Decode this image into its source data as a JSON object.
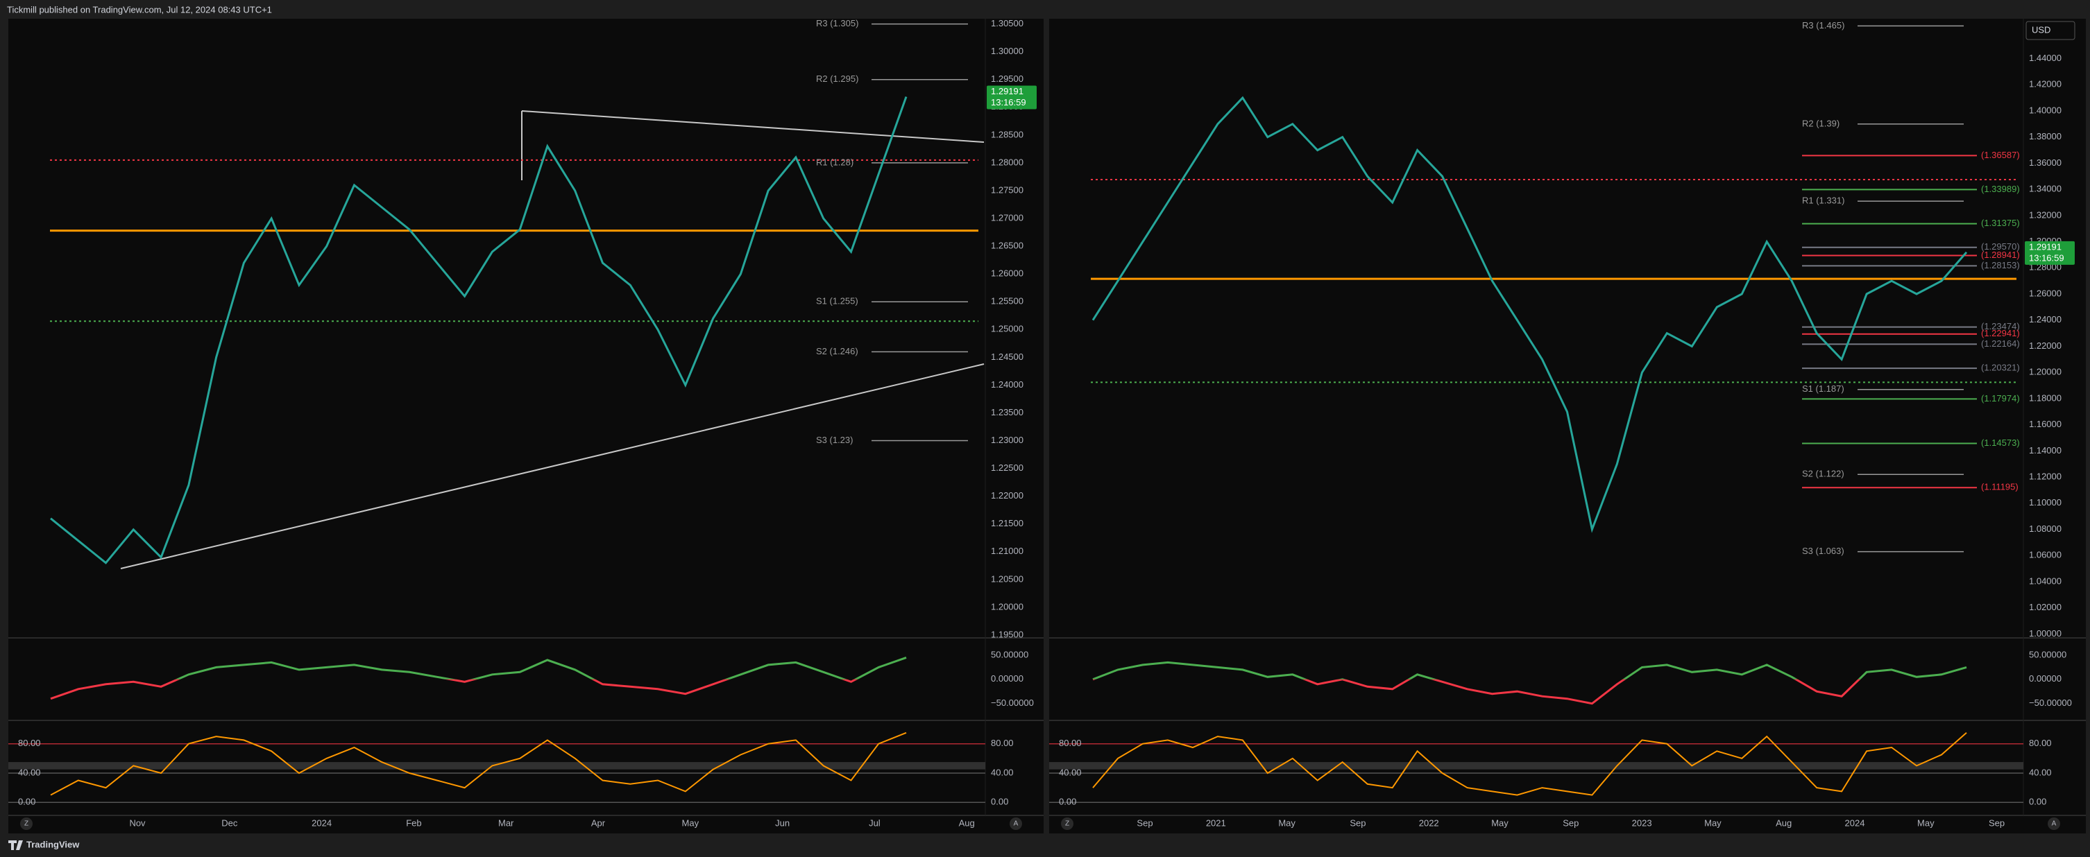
{
  "header": {
    "title": "Tickmill published on TradingView.com, Jul 12, 2024 08:43 UTC+1"
  },
  "footer": {
    "brand": "TradingView"
  },
  "chart_data": [
    {
      "type": "line",
      "grid": false,
      "ylim": [
        1.19475,
        1.30595
      ],
      "yticks": [
        {
          "value": 1.305,
          "label": "1.30500"
        },
        {
          "value": 1.3,
          "label": "1.30000"
        },
        {
          "value": 1.295,
          "label": "1.29500"
        },
        {
          "value": 1.29,
          "label": "1.29000"
        },
        {
          "value": 1.285,
          "label": "1.28500"
        },
        {
          "value": 1.28,
          "label": "1.28000"
        },
        {
          "value": 1.275,
          "label": "1.27500"
        },
        {
          "value": 1.27,
          "label": "1.27000"
        },
        {
          "value": 1.265,
          "label": "1.26500"
        },
        {
          "value": 1.26,
          "label": "1.26000"
        },
        {
          "value": 1.255,
          "label": "1.25500"
        },
        {
          "value": 1.25,
          "label": "1.25000"
        },
        {
          "value": 1.245,
          "label": "1.24500"
        },
        {
          "value": 1.24,
          "label": "1.24000"
        },
        {
          "value": 1.235,
          "label": "1.23500"
        },
        {
          "value": 1.23,
          "label": "1.23000"
        },
        {
          "value": 1.225,
          "label": "1.22500"
        },
        {
          "value": 1.22,
          "label": "1.22000"
        },
        {
          "value": 1.215,
          "label": "1.21500"
        },
        {
          "value": 1.21,
          "label": "1.21000"
        },
        {
          "value": 1.205,
          "label": "1.20500"
        },
        {
          "value": 1.2,
          "label": "1.20000"
        },
        {
          "value": 1.195,
          "label": "1.19500"
        }
      ],
      "series": [
        {
          "color": "#26a69a",
          "values": [
            1.216,
            1.212,
            1.208,
            1.214,
            1.209,
            1.222,
            1.245,
            1.262,
            1.27,
            1.258,
            1.265,
            1.276,
            1.272,
            1.268,
            1.262,
            1.256,
            1.264,
            1.268,
            1.283,
            1.275,
            1.262,
            1.258,
            1.25,
            1.24,
            1.252,
            1.26,
            1.275,
            1.281,
            1.27,
            1.264,
            1.278,
            1.29191
          ]
        }
      ],
      "last_price": 1.29191,
      "timer": "13:16:59",
      "tag_color": "#1e9e3a",
      "poc": 1.2678,
      "vah": 1.2805,
      "val": 1.2515,
      "pivots": [
        {
          "value": 1.305,
          "label": "R3 (1.305)"
        },
        {
          "value": 1.295,
          "label": "R2 (1.295)"
        },
        {
          "value": 1.28,
          "label": "R1 (1.28)"
        },
        {
          "value": 1.255,
          "label": "S1 (1.255)"
        },
        {
          "value": 1.246,
          "label": "S2 (1.246)"
        },
        {
          "value": 1.23,
          "label": "S3 (1.23)"
        }
      ],
      "levels": [],
      "time_labels": [
        "Nov",
        "Dec",
        "2024",
        "Feb",
        "Mar",
        "Apr",
        "May",
        "Jun",
        "Jul",
        "Aug"
      ],
      "osc_ylim": [
        -82,
        80
      ],
      "osc_yticks": [
        {
          "value": 50,
          "label": "50.00000"
        },
        {
          "value": 0,
          "label": "0.00000"
        },
        {
          "value": -50,
          "label": "−50.00000"
        }
      ],
      "osc_values": [
        -40,
        -20,
        -10,
        -5,
        -15,
        10,
        25,
        30,
        35,
        20,
        25,
        30,
        20,
        15,
        5,
        -5,
        10,
        15,
        40,
        20,
        -10,
        -15,
        -20,
        -30,
        -10,
        10,
        30,
        35,
        15,
        -5,
        25,
        45
      ],
      "stoch_ylim": [
        -14,
        110
      ],
      "stoch_yticks": [
        {
          "value": 80,
          "label": "80.00"
        },
        {
          "value": 40,
          "label": "40.00"
        },
        {
          "value": 0,
          "label": "0.00"
        }
      ],
      "stoch_values": [
        10,
        30,
        20,
        50,
        40,
        80,
        90,
        85,
        70,
        40,
        60,
        75,
        55,
        40,
        30,
        20,
        50,
        60,
        85,
        60,
        30,
        25,
        30,
        15,
        45,
        65,
        80,
        85,
        50,
        30,
        80,
        95
      ],
      "stoch_color": "#ff9800",
      "scale_buttons": [
        "Z",
        "A"
      ]
    },
    {
      "type": "line",
      "grid": false,
      "ylim": [
        0.9981,
        1.4705
      ],
      "yticks": [
        {
          "value": 1.44,
          "label": "1.44000"
        },
        {
          "value": 1.42,
          "label": "1.42000"
        },
        {
          "value": 1.4,
          "label": "1.40000"
        },
        {
          "value": 1.38,
          "label": "1.38000"
        },
        {
          "value": 1.36,
          "label": "1.36000"
        },
        {
          "value": 1.34,
          "label": "1.34000"
        },
        {
          "value": 1.32,
          "label": "1.32000"
        },
        {
          "value": 1.3,
          "label": "1.30000"
        },
        {
          "value": 1.28,
          "label": "1.28000"
        },
        {
          "value": 1.26,
          "label": "1.26000"
        },
        {
          "value": 1.24,
          "label": "1.24000"
        },
        {
          "value": 1.22,
          "label": "1.22000"
        },
        {
          "value": 1.2,
          "label": "1.20000"
        },
        {
          "value": 1.18,
          "label": "1.18000"
        },
        {
          "value": 1.16,
          "label": "1.16000"
        },
        {
          "value": 1.14,
          "label": "1.14000"
        },
        {
          "value": 1.12,
          "label": "1.12000"
        },
        {
          "value": 1.1,
          "label": "1.10000"
        },
        {
          "value": 1.08,
          "label": "1.08000"
        },
        {
          "value": 1.06,
          "label": "1.06000"
        },
        {
          "value": 1.04,
          "label": "1.04000"
        },
        {
          "value": 1.02,
          "label": "1.02000"
        },
        {
          "value": 1,
          "label": "1.00000"
        }
      ],
      "series": [
        {
          "color": "#26a69a",
          "values": [
            1.24,
            1.27,
            1.3,
            1.33,
            1.36,
            1.39,
            1.41,
            1.38,
            1.39,
            1.37,
            1.38,
            1.35,
            1.33,
            1.37,
            1.35,
            1.31,
            1.27,
            1.24,
            1.21,
            1.17,
            1.08,
            1.13,
            1.2,
            1.23,
            1.22,
            1.25,
            1.26,
            1.3,
            1.27,
            1.23,
            1.21,
            1.26,
            1.27,
            1.26,
            1.27,
            1.29191
          ]
        }
      ],
      "last_price": 1.29191,
      "timer": "13:16:59",
      "tag_color": "#1e9e3a",
      "currency": "USD",
      "poc": 1.2716,
      "vah": 1.3475,
      "val": 1.1925,
      "pivots": [
        {
          "value": 1.465,
          "label": "R3 (1.465)"
        },
        {
          "value": 1.39,
          "label": "R2 (1.39)"
        },
        {
          "value": 1.331,
          "label": "R1 (1.331)"
        },
        {
          "value": 1.187,
          "label": "S1 (1.187)"
        },
        {
          "value": 1.122,
          "label": "S2 (1.122)"
        },
        {
          "value": 1.063,
          "label": "S3 (1.063)"
        }
      ],
      "levels": [
        {
          "value": 1.36587,
          "label": "(1.36587)",
          "color": "#f23645"
        },
        {
          "value": 1.33989,
          "label": "(1.33989)",
          "color": "#4caf50"
        },
        {
          "value": 1.31375,
          "label": "(1.31375)",
          "color": "#4caf50"
        },
        {
          "value": 1.2957,
          "label": "(1.29570)",
          "color": "#787b86"
        },
        {
          "value": 1.28941,
          "label": "(1.28941)",
          "color": "#f23645"
        },
        {
          "value": 1.28153,
          "label": "(1.28153)",
          "color": "#787b86"
        },
        {
          "value": 1.23474,
          "label": "(1.23474)",
          "color": "#787b86"
        },
        {
          "value": 1.22941,
          "label": "(1.22941)",
          "color": "#f23645"
        },
        {
          "value": 1.22164,
          "label": "(1.22164)",
          "color": "#787b86"
        },
        {
          "value": 1.20321,
          "label": "(1.20321)",
          "color": "#787b86"
        },
        {
          "value": 1.17974,
          "label": "(1.17974)",
          "color": "#4caf50"
        },
        {
          "value": 1.14573,
          "label": "(1.14573)",
          "color": "#4caf50"
        },
        {
          "value": 1.11195,
          "label": "(1.11195)",
          "color": "#f23645"
        }
      ],
      "time_labels": [
        "Sep",
        "2021",
        "May",
        "Sep",
        "2022",
        "May",
        "Sep",
        "2023",
        "May",
        "Aug",
        "2024",
        "May",
        "Sep"
      ],
      "osc_ylim": [
        -82,
        80
      ],
      "osc_yticks": [
        {
          "value": 50,
          "label": "50.00000"
        },
        {
          "value": 0,
          "label": "0.00000"
        },
        {
          "value": -50,
          "label": "−50.00000"
        }
      ],
      "osc_values": [
        0,
        20,
        30,
        35,
        30,
        25,
        20,
        5,
        10,
        -10,
        0,
        -15,
        -20,
        10,
        -5,
        -20,
        -30,
        -25,
        -35,
        -40,
        -50,
        -10,
        25,
        30,
        15,
        20,
        10,
        30,
        5,
        -25,
        -35,
        15,
        20,
        5,
        10,
        25
      ],
      "stoch_ylim": [
        -14,
        110
      ],
      "stoch_yticks": [
        {
          "value": 80,
          "label": "80.00"
        },
        {
          "value": 40,
          "label": "40.00"
        },
        {
          "value": 0,
          "label": "0.00"
        }
      ],
      "stoch_values": [
        20,
        60,
        80,
        85,
        75,
        90,
        85,
        40,
        60,
        30,
        55,
        25,
        20,
        70,
        40,
        20,
        15,
        10,
        20,
        15,
        10,
        50,
        85,
        80,
        50,
        70,
        60,
        90,
        55,
        20,
        15,
        70,
        75,
        50,
        65,
        95
      ],
      "stoch_color": "#ff9800",
      "scale_buttons": [
        "Z",
        "A"
      ]
    }
  ]
}
